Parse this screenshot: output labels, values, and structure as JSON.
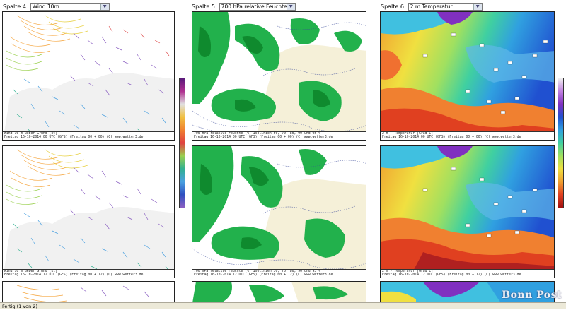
{
  "columns": [
    {
      "label": "Spalte 4:",
      "selected": "Wind 10m"
    },
    {
      "label": "Spalte 5:",
      "selected": "700 hPa relative Feuchte"
    },
    {
      "label": "Spalte 6:",
      "selected": "2 m Temperatur"
    }
  ],
  "captions": {
    "wind_row1": [
      "Wind 10 m ueber Grund [kt]",
      "Freitag  16-10-2014  00 UTC          (GFS)  (Freitag 00 + 00)    (C) www.wetter3.de"
    ],
    "wind_row2": [
      "Wind 10 m ueber Grund [kt]",
      "Freitag  16-10-2014  12 UTC          (GFS)  (Freitag 00 + 12)    (C) www.wetter3.de"
    ],
    "rh_row1": [
      "700 hPa relative Feuchte [%] Isolinien 50, 70, 80, 90 und 95 %",
      "Freitag  16-10-2014  00 UTC   (GFS)  (Freitag 00 + 00)   (C) www.wetter3.de"
    ],
    "rh_row2": [
      "700 hPa relative Feuchte [%] Isolinien 50, 70, 80, 90 und 95 %",
      "Freitag  16-10-2014  12 UTC   (GFS)  (Freitag 00 + 12)   (C) www.wetter3.de"
    ],
    "temp_row1": [
      "2 m - Temperatur [Grad C]",
      "Freitag  16-10-2014  00 UTC   (GFS)  (Freitag 00 + 00)   (C) www.wetter3.de"
    ],
    "temp_row2": [
      "2 m - Temperatur [Grad C]",
      "Freitag  16-10-2014  12 UTC   (GFS)  (Freitag 00 + 12)   (C) www.wetter3.de"
    ]
  },
  "status": "Fertig (1 von 2)",
  "watermark": "Bonn Post",
  "colors": {
    "rh": "#22b14c",
    "rh_dark": "#0f8a2e",
    "land": "#f5f0d8"
  }
}
